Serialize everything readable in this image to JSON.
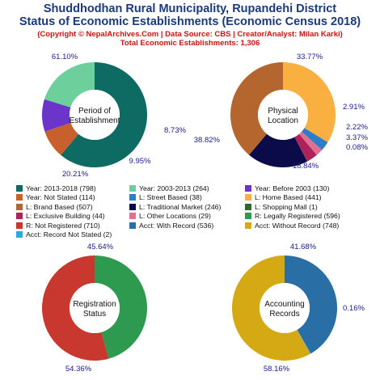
{
  "header": {
    "title_line1": "Shuddhodhan Rural Municipality, Rupandehi District",
    "title_line2": "Status of Economic Establishments (Economic Census 2018)",
    "subtitle_line1": "(Copyright © NepalArchives.Com | Data Source: CBS | Creator/Analyst: Milan Karki)",
    "subtitle_line2": "Total Economic Establishments: 1,306"
  },
  "chart_data": [
    {
      "type": "pie",
      "style": "donut",
      "center_label": [
        "Period of",
        "Establishment"
      ],
      "slices": [
        {
          "value": 61.1,
          "label": "61.10%",
          "color": "#0e6b63"
        },
        {
          "value": 8.73,
          "label": "8.73%",
          "color": "#c8602e"
        },
        {
          "value": 9.95,
          "label": "9.95%",
          "color": "#6a35c8"
        },
        {
          "value": 20.21,
          "label": "20.21%",
          "color": "#6ccf9c"
        }
      ]
    },
    {
      "type": "pie",
      "style": "donut",
      "center_label": [
        "Physical",
        "Location"
      ],
      "slices": [
        {
          "value": 33.77,
          "label": "33.77%",
          "color": "#f9b040"
        },
        {
          "value": 2.91,
          "label": "2.91%",
          "color": "#2d7ec6"
        },
        {
          "value": 2.22,
          "label": "2.22%",
          "color": "#e07090"
        },
        {
          "value": 3.37,
          "label": "3.37%",
          "color": "#b0205a"
        },
        {
          "value": 0.08,
          "label": "0.08%",
          "color": "#2e6a2e"
        },
        {
          "value": 18.84,
          "label": "18.84%",
          "color": "#0b0b4a"
        },
        {
          "value": 38.82,
          "label": "38.82%",
          "color": "#b5652e"
        }
      ]
    },
    {
      "type": "pie",
      "style": "donut",
      "center_label": [
        "Registration",
        "Status"
      ],
      "slices": [
        {
          "value": 45.64,
          "label": "45.64%",
          "color": "#2e9a50"
        },
        {
          "value": 54.36,
          "label": "54.36%",
          "color": "#c8382e"
        }
      ]
    },
    {
      "type": "pie",
      "style": "donut",
      "center_label": [
        "Accounting",
        "Records"
      ],
      "slices": [
        {
          "value": 41.68,
          "label": "41.68%",
          "color": "#2a6ea6"
        },
        {
          "value": 0.16,
          "label": "0.16%",
          "color": "#2aa8e0"
        },
        {
          "value": 58.16,
          "label": "58.16%",
          "color": "#d4a914"
        }
      ]
    }
  ],
  "legend": [
    {
      "text": "Year: 2013-2018 (798)",
      "color": "#0e6b63"
    },
    {
      "text": "Year: 2003-2013 (264)",
      "color": "#6ccf9c"
    },
    {
      "text": "Year: Before 2003 (130)",
      "color": "#6a35c8"
    },
    {
      "text": "Year: Not Stated (114)",
      "color": "#c8602e"
    },
    {
      "text": "L: Street Based (38)",
      "color": "#2d7ec6"
    },
    {
      "text": "L: Home Based (441)",
      "color": "#f9b040"
    },
    {
      "text": "L: Brand Based (507)",
      "color": "#b5652e"
    },
    {
      "text": "L: Traditional Market (246)",
      "color": "#0b0b4a"
    },
    {
      "text": "L: Shopping Mall (1)",
      "color": "#2e6a2e"
    },
    {
      "text": "L: Exclusive Building (44)",
      "color": "#b0205a"
    },
    {
      "text": "L: Other Locations (29)",
      "color": "#e07090"
    },
    {
      "text": "R: Legally Registered (596)",
      "color": "#2e9a50"
    },
    {
      "text": "R: Not Registered (710)",
      "color": "#c8382e"
    },
    {
      "text": "Acct: With Record (536)",
      "color": "#2a6ea6"
    },
    {
      "text": "Acct: Without Record (748)",
      "color": "#d4a914"
    },
    {
      "text": "Acct: Record Not Stated (2)",
      "color": "#2aa8e0"
    }
  ]
}
